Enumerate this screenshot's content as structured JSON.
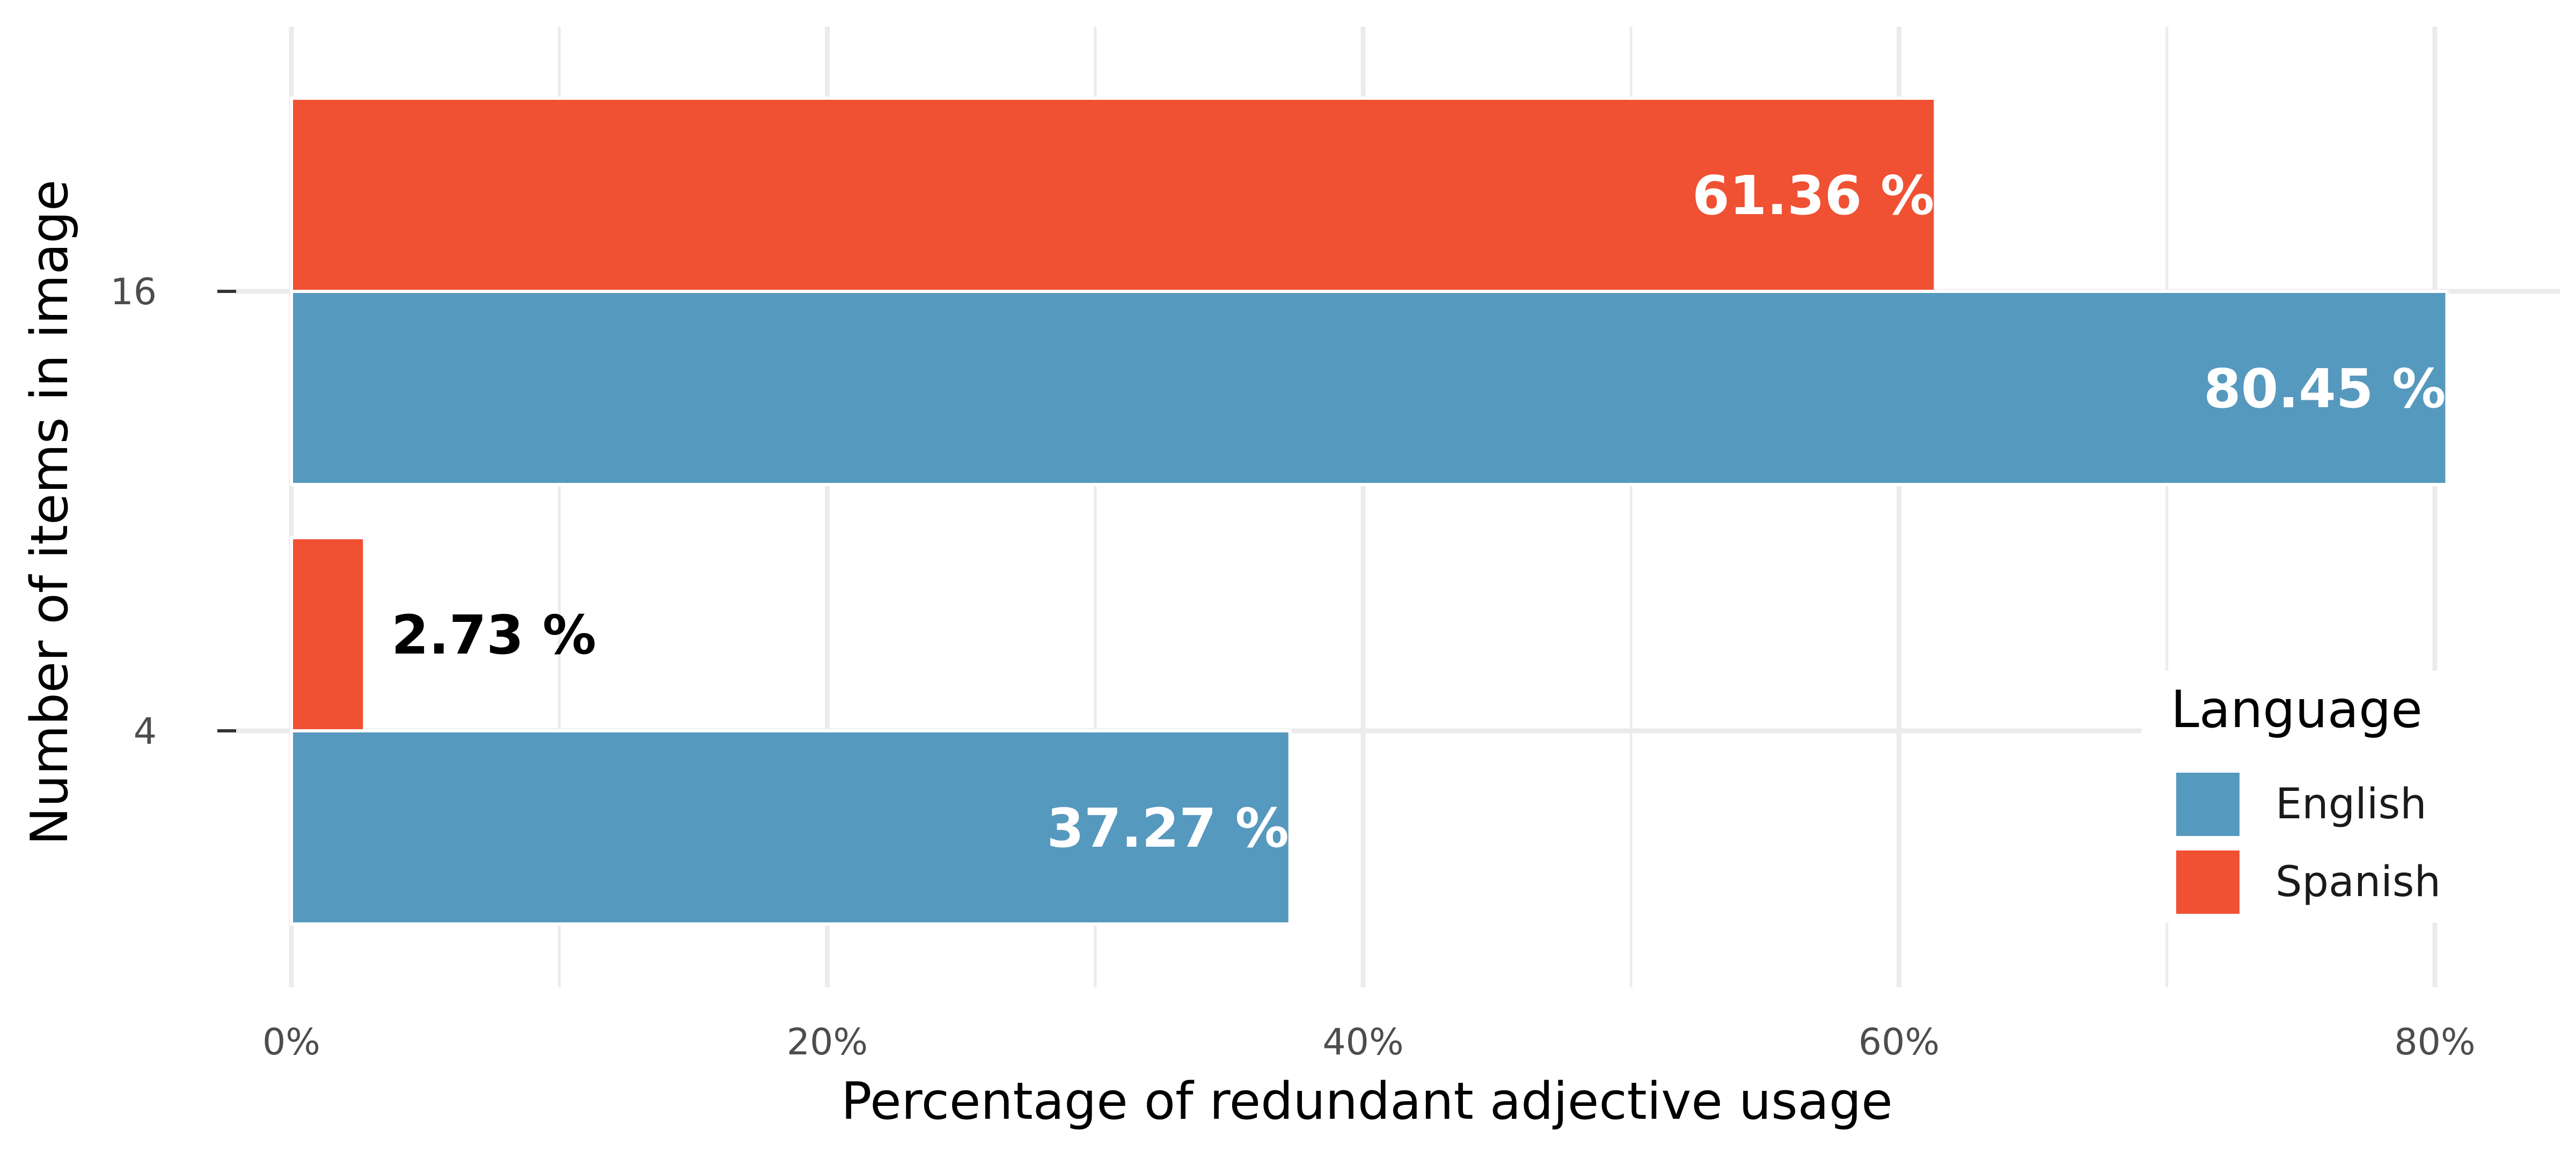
{
  "chart_data": {
    "type": "bar",
    "orientation": "horizontal",
    "categories": [
      "4",
      "16"
    ],
    "series": [
      {
        "name": "English",
        "values": [
          37.27,
          80.45
        ],
        "labels": [
          "37.27 %",
          "80.45 %"
        ],
        "color": "#5699be"
      },
      {
        "name": "Spanish",
        "values": [
          2.73,
          61.36
        ],
        "labels": [
          "2.73 %",
          "61.36 %"
        ],
        "color": "#f05133"
      }
    ],
    "xlabel": "Percentage of redundant adjective usage",
    "ylabel": "Number of items in image",
    "xlim": [
      0,
      85
    ],
    "xticks": [
      0,
      20,
      40,
      60,
      80
    ],
    "xtick_labels": [
      "0%",
      "20%",
      "40%",
      "60%",
      "80%"
    ],
    "grid": true,
    "legend": {
      "title": "Language",
      "position": "right",
      "entries": [
        "English",
        "Spanish"
      ]
    }
  }
}
